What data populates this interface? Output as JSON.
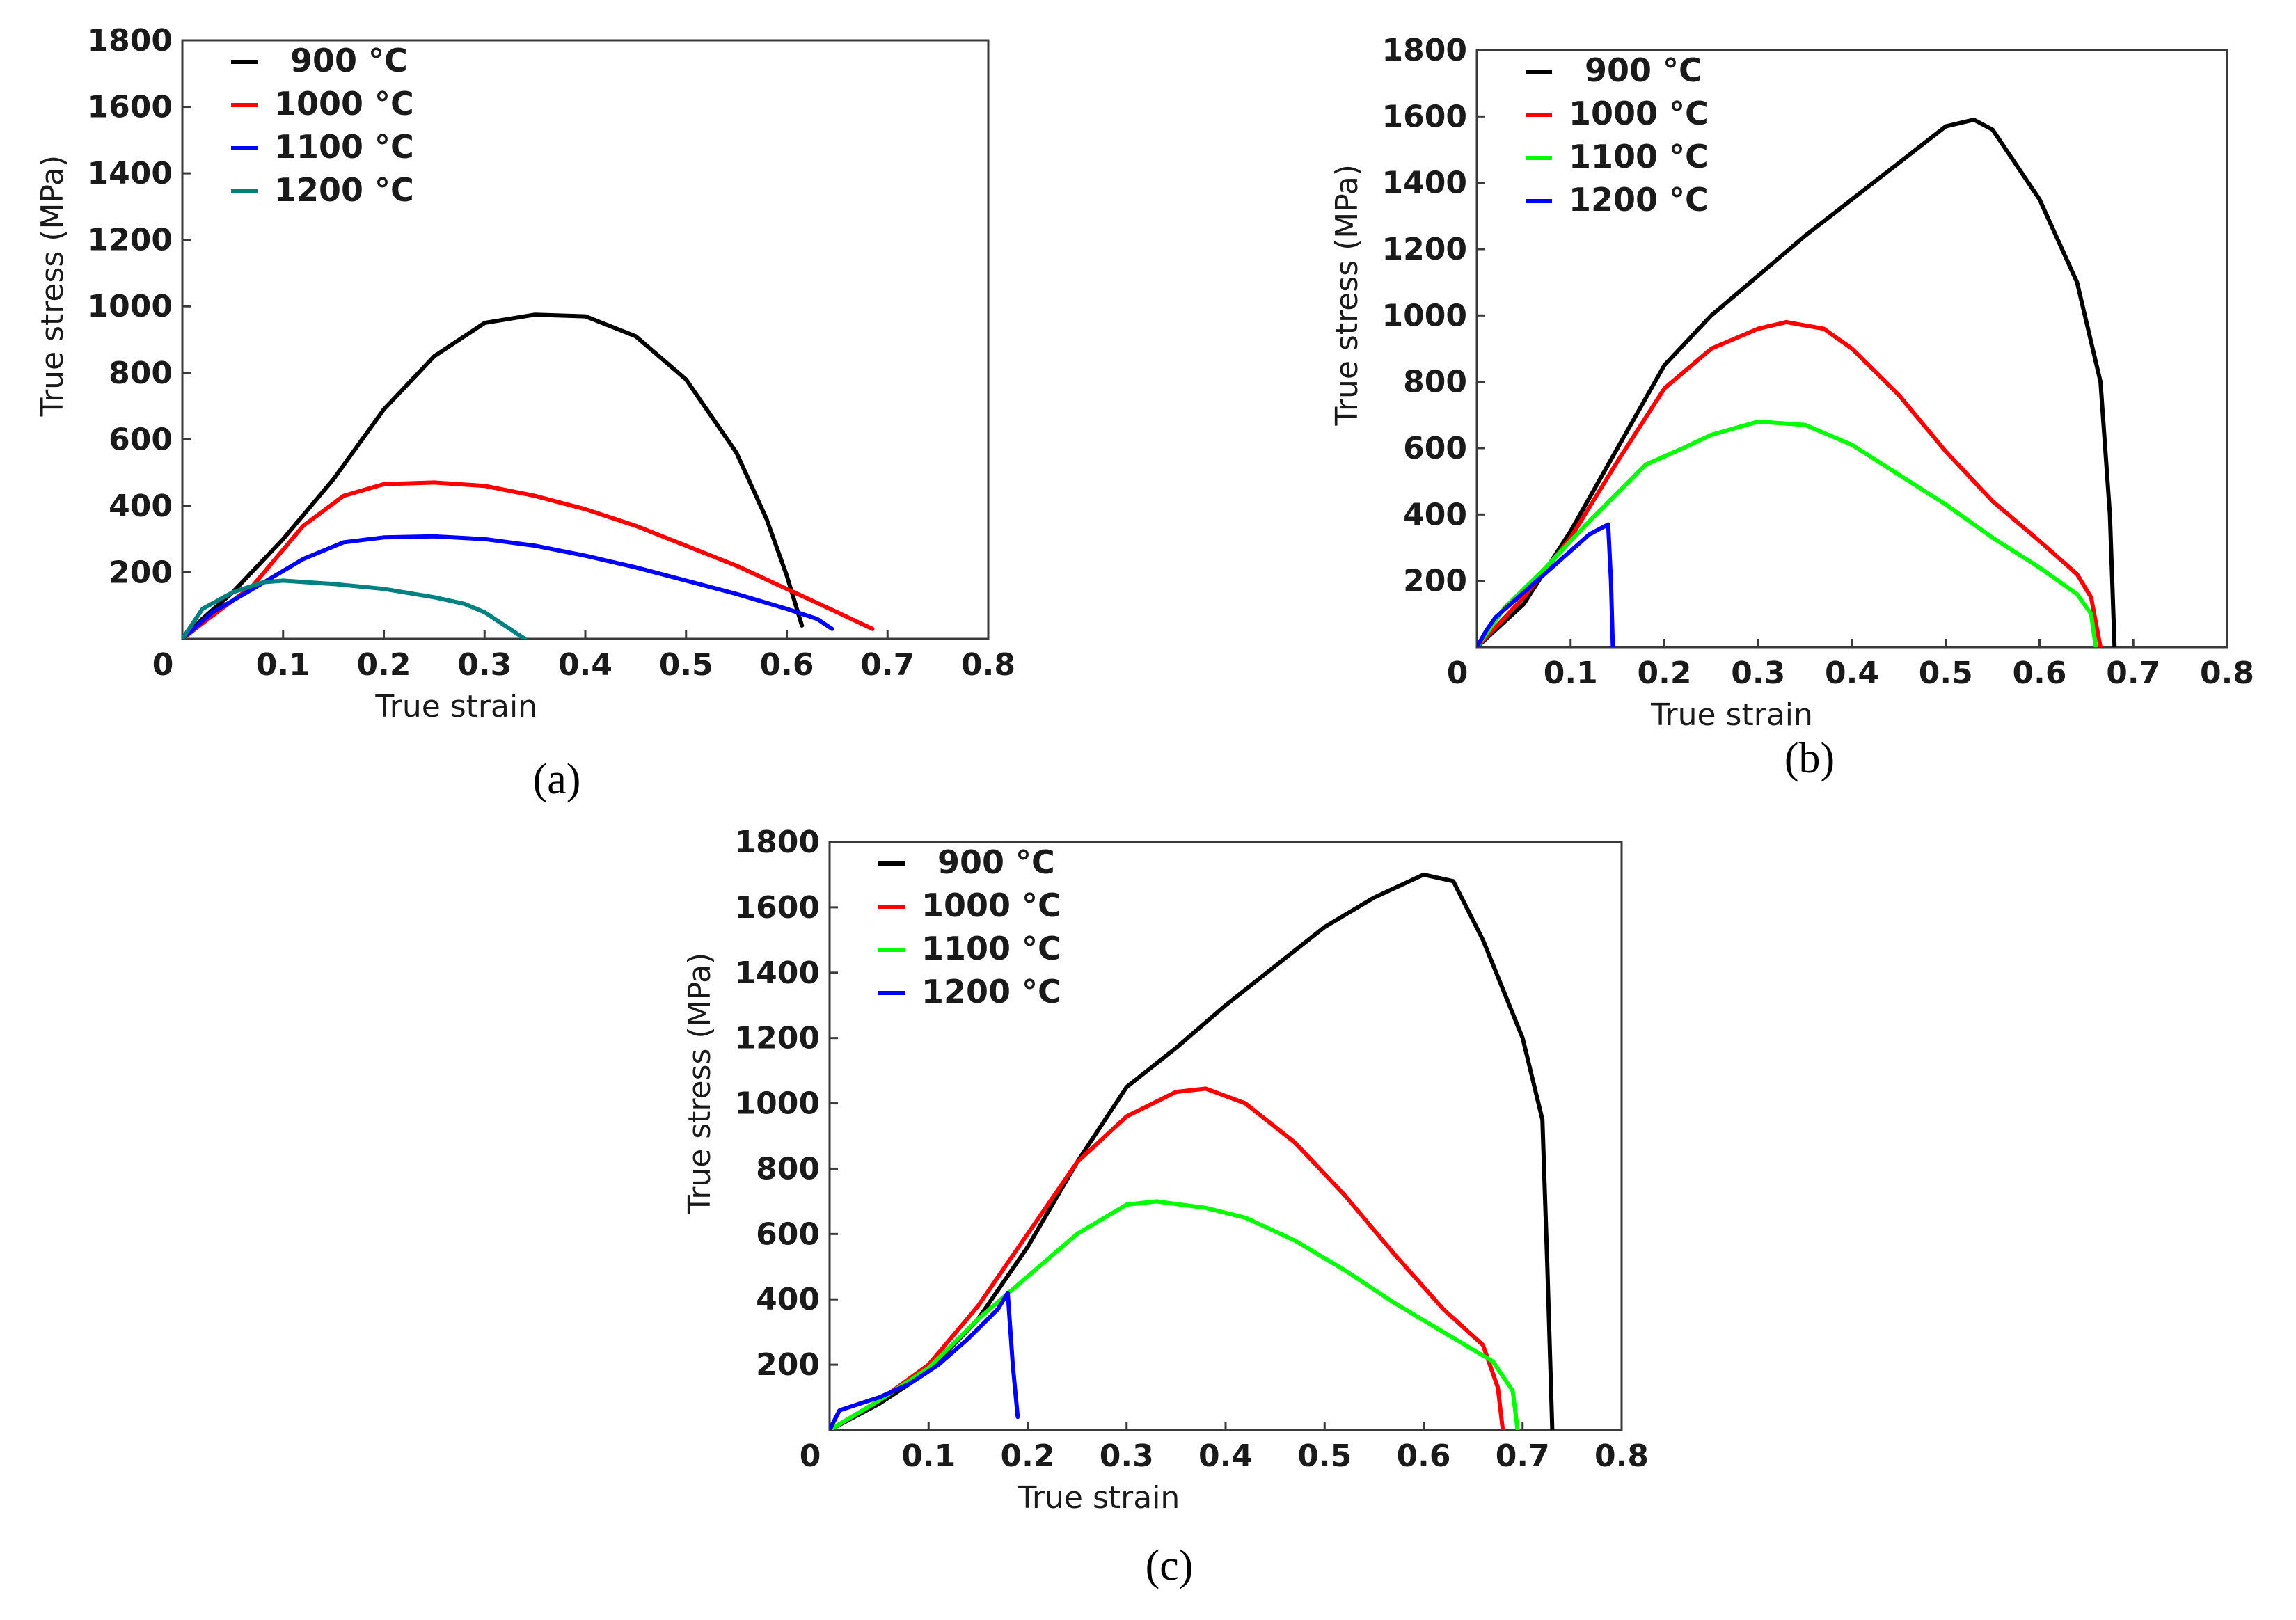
{
  "chart_data": [
    {
      "type": "line",
      "panel_label": "(a)",
      "xlabel": "True strain",
      "ylabel": "True stress (MPa)",
      "xlim": [
        0,
        0.8
      ],
      "ylim": [
        0,
        1800
      ],
      "x_ticks": [
        "0",
        "0.1",
        "0.2",
        "0.3",
        "0.4",
        "0.5",
        "0.6",
        "0.7",
        "0.8"
      ],
      "y_ticks": [
        "200",
        "400",
        "600",
        "800",
        "1000",
        "1200",
        "1400",
        "1600",
        "1800"
      ],
      "legend_position": "top-left",
      "series": [
        {
          "name": "900 °C",
          "color": "#000000",
          "points": [
            [
              0.0,
              0
            ],
            [
              0.02,
              60
            ],
            [
              0.05,
              140
            ],
            [
              0.1,
              300
            ],
            [
              0.15,
              480
            ],
            [
              0.2,
              690
            ],
            [
              0.25,
              850
            ],
            [
              0.3,
              950
            ],
            [
              0.35,
              975
            ],
            [
              0.4,
              970
            ],
            [
              0.45,
              910
            ],
            [
              0.5,
              780
            ],
            [
              0.55,
              560
            ],
            [
              0.58,
              360
            ],
            [
              0.6,
              190
            ],
            [
              0.615,
              40
            ]
          ]
        },
        {
          "name": "1000 °C",
          "color": "#ff0000",
          "points": [
            [
              0.0,
              0
            ],
            [
              0.03,
              70
            ],
            [
              0.07,
              160
            ],
            [
              0.12,
              340
            ],
            [
              0.16,
              430
            ],
            [
              0.2,
              465
            ],
            [
              0.25,
              470
            ],
            [
              0.3,
              460
            ],
            [
              0.35,
              430
            ],
            [
              0.4,
              390
            ],
            [
              0.45,
              340
            ],
            [
              0.5,
              280
            ],
            [
              0.55,
              220
            ],
            [
              0.6,
              150
            ],
            [
              0.65,
              80
            ],
            [
              0.685,
              30
            ]
          ]
        },
        {
          "name": "1100 °C",
          "color": "#0000ff",
          "points": [
            [
              0.0,
              0
            ],
            [
              0.03,
              80
            ],
            [
              0.07,
              150
            ],
            [
              0.12,
              240
            ],
            [
              0.16,
              290
            ],
            [
              0.2,
              305
            ],
            [
              0.25,
              308
            ],
            [
              0.3,
              300
            ],
            [
              0.35,
              280
            ],
            [
              0.4,
              250
            ],
            [
              0.45,
              215
            ],
            [
              0.5,
              175
            ],
            [
              0.55,
              135
            ],
            [
              0.6,
              90
            ],
            [
              0.63,
              60
            ],
            [
              0.645,
              30
            ]
          ]
        },
        {
          "name": "1200 °C",
          "color": "#008080",
          "points": [
            [
              0.0,
              0
            ],
            [
              0.02,
              90
            ],
            [
              0.05,
              140
            ],
            [
              0.08,
              170
            ],
            [
              0.1,
              175
            ],
            [
              0.15,
              165
            ],
            [
              0.2,
              150
            ],
            [
              0.25,
              125
            ],
            [
              0.28,
              105
            ],
            [
              0.3,
              80
            ],
            [
              0.32,
              40
            ],
            [
              0.34,
              0
            ]
          ]
        }
      ]
    },
    {
      "type": "line",
      "panel_label": "(b)",
      "xlabel": "True strain",
      "ylabel": "True stress (MPa)",
      "xlim": [
        0,
        0.8
      ],
      "ylim": [
        0,
        1800
      ],
      "x_ticks": [
        "0",
        "0.1",
        "0.2",
        "0.3",
        "0.4",
        "0.5",
        "0.6",
        "0.7",
        "0.8"
      ],
      "y_ticks": [
        "200",
        "400",
        "600",
        "800",
        "1000",
        "1200",
        "1400",
        "1600",
        "1800"
      ],
      "legend_position": "top-left",
      "series": [
        {
          "name": "900 °C",
          "color": "#000000",
          "points": [
            [
              0.0,
              0
            ],
            [
              0.05,
              130
            ],
            [
              0.1,
              350
            ],
            [
              0.15,
              600
            ],
            [
              0.2,
              850
            ],
            [
              0.25,
              1000
            ],
            [
              0.3,
              1120
            ],
            [
              0.35,
              1240
            ],
            [
              0.4,
              1350
            ],
            [
              0.45,
              1460
            ],
            [
              0.5,
              1570
            ],
            [
              0.53,
              1590
            ],
            [
              0.55,
              1560
            ],
            [
              0.6,
              1350
            ],
            [
              0.64,
              1100
            ],
            [
              0.665,
              800
            ],
            [
              0.675,
              400
            ],
            [
              0.68,
              0
            ]
          ]
        },
        {
          "name": "1000 °C",
          "color": "#ff0000",
          "points": [
            [
              0.0,
              0
            ],
            [
              0.05,
              150
            ],
            [
              0.1,
              330
            ],
            [
              0.15,
              560
            ],
            [
              0.2,
              780
            ],
            [
              0.25,
              900
            ],
            [
              0.3,
              960
            ],
            [
              0.33,
              980
            ],
            [
              0.37,
              960
            ],
            [
              0.4,
              900
            ],
            [
              0.45,
              760
            ],
            [
              0.5,
              590
            ],
            [
              0.55,
              440
            ],
            [
              0.6,
              320
            ],
            [
              0.64,
              220
            ],
            [
              0.655,
              150
            ],
            [
              0.665,
              0
            ]
          ]
        },
        {
          "name": "1100 °C",
          "color": "#00ff00",
          "points": [
            [
              0.0,
              0
            ],
            [
              0.03,
              120
            ],
            [
              0.07,
              230
            ],
            [
              0.12,
              380
            ],
            [
              0.18,
              550
            ],
            [
              0.22,
              600
            ],
            [
              0.25,
              640
            ],
            [
              0.3,
              680
            ],
            [
              0.35,
              670
            ],
            [
              0.4,
              610
            ],
            [
              0.45,
              520
            ],
            [
              0.5,
              430
            ],
            [
              0.55,
              330
            ],
            [
              0.6,
              240
            ],
            [
              0.64,
              160
            ],
            [
              0.655,
              100
            ],
            [
              0.66,
              0
            ]
          ]
        },
        {
          "name": "1200 °C",
          "color": "#0000ff",
          "points": [
            [
              0.0,
              0
            ],
            [
              0.01,
              50
            ],
            [
              0.02,
              90
            ],
            [
              0.04,
              140
            ],
            [
              0.06,
              190
            ],
            [
              0.08,
              240
            ],
            [
              0.1,
              290
            ],
            [
              0.12,
              340
            ],
            [
              0.14,
              370
            ],
            [
              0.143,
              200
            ],
            [
              0.145,
              0
            ]
          ]
        }
      ]
    },
    {
      "type": "line",
      "panel_label": "(c)",
      "xlabel": "True strain",
      "ylabel": "True stress (MPa)",
      "xlim": [
        0,
        0.8
      ],
      "ylim": [
        0,
        1800
      ],
      "x_ticks": [
        "0",
        "0.1",
        "0.2",
        "0.3",
        "0.4",
        "0.5",
        "0.6",
        "0.7",
        "0.8"
      ],
      "y_ticks": [
        "200",
        "400",
        "600",
        "800",
        "1000",
        "1200",
        "1400",
        "1600",
        "1800"
      ],
      "legend_position": "top-left",
      "series": [
        {
          "name": "900 °C",
          "color": "#000000",
          "points": [
            [
              0.0,
              0
            ],
            [
              0.05,
              80
            ],
            [
              0.1,
              180
            ],
            [
              0.15,
              340
            ],
            [
              0.2,
              560
            ],
            [
              0.25,
              820
            ],
            [
              0.3,
              1050
            ],
            [
              0.35,
              1170
            ],
            [
              0.4,
              1300
            ],
            [
              0.45,
              1420
            ],
            [
              0.5,
              1540
            ],
            [
              0.55,
              1630
            ],
            [
              0.6,
              1700
            ],
            [
              0.63,
              1680
            ],
            [
              0.66,
              1500
            ],
            [
              0.7,
              1200
            ],
            [
              0.72,
              950
            ],
            [
              0.725,
              500
            ],
            [
              0.73,
              0
            ]
          ]
        },
        {
          "name": "1000 °C",
          "color": "#ff0000",
          "points": [
            [
              0.0,
              0
            ],
            [
              0.05,
              90
            ],
            [
              0.1,
              200
            ],
            [
              0.15,
              380
            ],
            [
              0.2,
              600
            ],
            [
              0.25,
              820
            ],
            [
              0.3,
              960
            ],
            [
              0.35,
              1035
            ],
            [
              0.38,
              1045
            ],
            [
              0.42,
              1000
            ],
            [
              0.47,
              880
            ],
            [
              0.52,
              720
            ],
            [
              0.57,
              540
            ],
            [
              0.62,
              370
            ],
            [
              0.66,
              260
            ],
            [
              0.675,
              130
            ],
            [
              0.68,
              0
            ]
          ]
        },
        {
          "name": "1100 °C",
          "color": "#00ff00",
          "points": [
            [
              0.0,
              0
            ],
            [
              0.05,
              90
            ],
            [
              0.1,
              190
            ],
            [
              0.15,
              340
            ],
            [
              0.2,
              470
            ],
            [
              0.25,
              600
            ],
            [
              0.3,
              690
            ],
            [
              0.33,
              700
            ],
            [
              0.38,
              680
            ],
            [
              0.42,
              650
            ],
            [
              0.47,
              580
            ],
            [
              0.52,
              490
            ],
            [
              0.57,
              390
            ],
            [
              0.62,
              300
            ],
            [
              0.67,
              210
            ],
            [
              0.69,
              120
            ],
            [
              0.695,
              0
            ]
          ]
        },
        {
          "name": "1200 °C",
          "color": "#0000ff",
          "points": [
            [
              0.0,
              0
            ],
            [
              0.01,
              60
            ],
            [
              0.03,
              80
            ],
            [
              0.05,
              100
            ],
            [
              0.08,
              140
            ],
            [
              0.11,
              200
            ],
            [
              0.14,
              280
            ],
            [
              0.17,
              370
            ],
            [
              0.18,
              420
            ],
            [
              0.185,
              200
            ],
            [
              0.19,
              40
            ]
          ]
        }
      ]
    }
  ]
}
